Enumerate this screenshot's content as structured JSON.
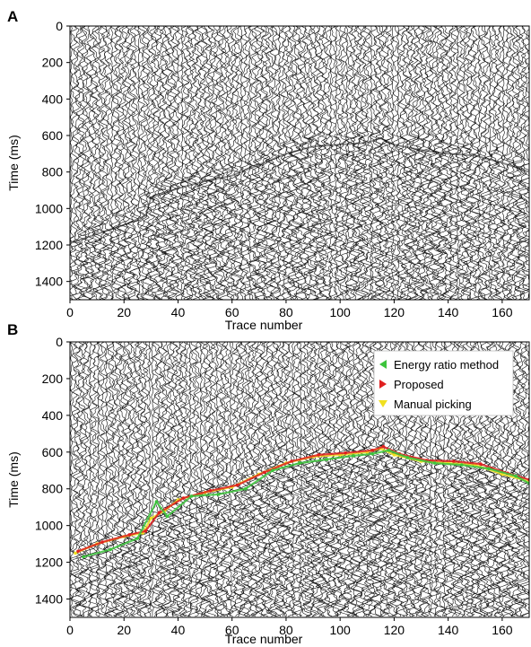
{
  "chart_data": [
    {
      "panel_label": "A",
      "type": "seismic-wiggle",
      "title": "",
      "xlabel": "Trace number",
      "ylabel": "Time (ms)",
      "xlim": [
        0,
        170
      ],
      "ylim": [
        1500,
        0
      ],
      "xticks": [
        0,
        20,
        40,
        60,
        80,
        100,
        120,
        140,
        160
      ],
      "yticks": [
        0,
        200,
        400,
        600,
        800,
        1000,
        1200,
        1400
      ],
      "traces": 170,
      "first_break_ms": [
        [
          0,
          1150
        ],
        [
          10,
          1100
        ],
        [
          20,
          1050
        ],
        [
          28,
          1000
        ],
        [
          30,
          900
        ],
        [
          40,
          850
        ],
        [
          50,
          810
        ],
        [
          60,
          780
        ],
        [
          70,
          720
        ],
        [
          80,
          660
        ],
        [
          90,
          620
        ],
        [
          100,
          610
        ],
        [
          110,
          600
        ],
        [
          115,
          575
        ],
        [
          120,
          610
        ],
        [
          130,
          640
        ],
        [
          140,
          660
        ],
        [
          150,
          670
        ],
        [
          160,
          710
        ],
        [
          170,
          760
        ]
      ]
    },
    {
      "panel_label": "B",
      "type": "seismic-wiggle",
      "title": "",
      "xlabel": "Trace number",
      "ylabel": "Time (ms)",
      "xlim": [
        0,
        170
      ],
      "ylim": [
        1500,
        0
      ],
      "xticks": [
        0,
        20,
        40,
        60,
        80,
        100,
        120,
        140,
        160
      ],
      "yticks": [
        0,
        200,
        400,
        600,
        800,
        1000,
        1200,
        1400
      ],
      "traces": 170,
      "legend": {
        "placement": "top-right",
        "entries": [
          {
            "label": "Energy ratio method",
            "color": "#3cc43c"
          },
          {
            "label": "Proposed",
            "color": "#e02020"
          },
          {
            "label": "Manual picking",
            "color": "#f0e020"
          }
        ]
      },
      "series": [
        {
          "name": "Manual picking",
          "color": "#f0e020",
          "points": [
            [
              2,
              1150
            ],
            [
              10,
              1100
            ],
            [
              20,
              1060
            ],
            [
              27,
              1040
            ],
            [
              30,
              960
            ],
            [
              35,
              920
            ],
            [
              40,
              860
            ],
            [
              50,
              820
            ],
            [
              60,
              790
            ],
            [
              70,
              720
            ],
            [
              80,
              660
            ],
            [
              90,
              625
            ],
            [
              100,
              615
            ],
            [
              110,
              600
            ],
            [
              115,
              580
            ],
            [
              120,
              615
            ],
            [
              130,
              650
            ],
            [
              140,
              660
            ],
            [
              150,
              670
            ],
            [
              160,
              720
            ],
            [
              170,
              760
            ]
          ]
        },
        {
          "name": "Proposed",
          "color": "#e02020",
          "points": [
            [
              3,
              1140
            ],
            [
              12,
              1090
            ],
            [
              22,
              1050
            ],
            [
              28,
              1030
            ],
            [
              33,
              930
            ],
            [
              42,
              850
            ],
            [
              52,
              810
            ],
            [
              62,
              780
            ],
            [
              72,
              710
            ],
            [
              82,
              650
            ],
            [
              92,
              615
            ],
            [
              102,
              605
            ],
            [
              112,
              590
            ],
            [
              116,
              570
            ],
            [
              122,
              610
            ],
            [
              132,
              645
            ],
            [
              142,
              650
            ],
            [
              152,
              665
            ],
            [
              162,
              715
            ],
            [
              170,
              750
            ]
          ]
        },
        {
          "name": "Energy ratio method",
          "color": "#3cc43c",
          "points": [
            [
              5,
              1170
            ],
            [
              15,
              1130
            ],
            [
              25,
              1070
            ],
            [
              32,
              870
            ],
            [
              36,
              950
            ],
            [
              45,
              840
            ],
            [
              55,
              830
            ],
            [
              65,
              800
            ],
            [
              75,
              700
            ],
            [
              85,
              660
            ],
            [
              95,
              640
            ],
            [
              105,
              620
            ],
            [
              112,
              610
            ],
            [
              118,
              590
            ],
            [
              125,
              630
            ],
            [
              135,
              660
            ],
            [
              145,
              670
            ],
            [
              155,
              690
            ],
            [
              165,
              730
            ],
            [
              170,
              770
            ]
          ]
        }
      ]
    }
  ]
}
